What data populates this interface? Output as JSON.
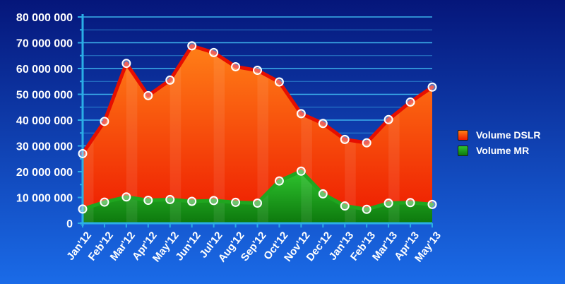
{
  "chart_data": {
    "type": "area",
    "categories": [
      "Jan'12",
      "Feb'12",
      "Mar'12",
      "Apr'12",
      "May'12",
      "Jun'12",
      "Jul'12",
      "Aug'12",
      "Sep'12",
      "Oct'12",
      "Nov'12",
      "Dec'12",
      "Jan'13",
      "Feb'13",
      "Mar'13",
      "Apr'13",
      "May'13"
    ],
    "series": [
      {
        "name": "Volume DSLR",
        "values": [
          27000000,
          39500000,
          62000000,
          49500000,
          55500000,
          68800000,
          66200000,
          60700000,
          59300000,
          54800000,
          42500000,
          38700000,
          32500000,
          31200000,
          40200000,
          47000000,
          52800000
        ],
        "color_top": "#ff7f17",
        "color_bottom": "#ee1a00",
        "line_color": "#e60e00",
        "stacked": false
      },
      {
        "name": "Volume MR",
        "values": [
          5500000,
          8200000,
          10200000,
          8900000,
          9200000,
          8500000,
          8800000,
          8100000,
          7800000,
          16400000,
          20200000,
          11400000,
          6700000,
          5400000,
          7800000,
          8000000,
          7300000
        ],
        "color_top": "#2ec42e",
        "color_bottom": "#0d780d",
        "line_color": "#1fa61f",
        "stacked": false
      }
    ],
    "y_ticks": [
      "0",
      "10 000 000",
      "20 000 000",
      "30 000 000",
      "40 000 000",
      "50 000 000",
      "60 000 000",
      "70 000 000",
      "80 000 000"
    ],
    "ylim": [
      0,
      80000000
    ],
    "y_minor_step": 5000000,
    "grid": true,
    "legend": "right",
    "colors": {
      "background_top": "#05167a",
      "background_bottom": "#1a6be8",
      "axis": "#2aaee6",
      "grid": "#3fb8f0"
    }
  }
}
